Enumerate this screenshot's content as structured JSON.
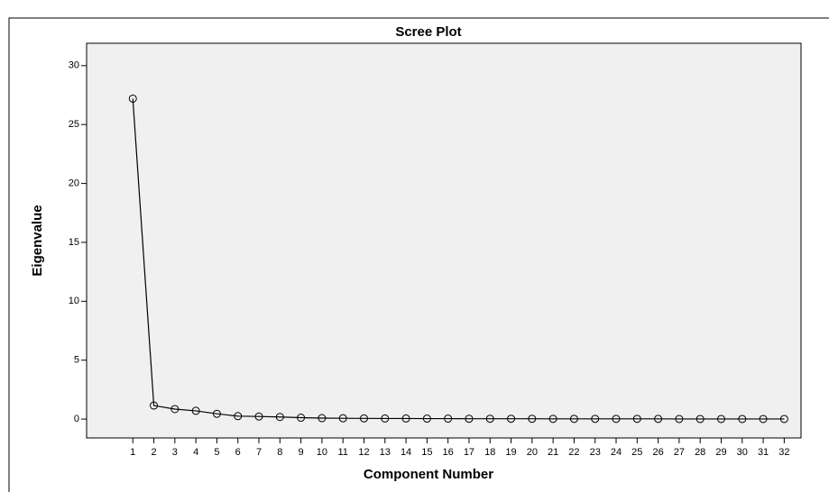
{
  "chart_data": {
    "type": "line",
    "title": "Scree Plot",
    "x_label": "Component Number",
    "y_label": "Eigenvalue",
    "x": [
      1,
      2,
      3,
      4,
      5,
      6,
      7,
      8,
      9,
      10,
      11,
      12,
      13,
      14,
      15,
      16,
      17,
      18,
      19,
      20,
      21,
      22,
      23,
      24,
      25,
      26,
      27,
      28,
      29,
      30,
      31,
      32
    ],
    "series": [
      {
        "name": "Eigenvalue",
        "color": "#000000",
        "values": [
          27.2,
          1.15,
          0.85,
          0.7,
          0.45,
          0.25,
          0.22,
          0.18,
          0.12,
          0.08,
          0.07,
          0.06,
          0.05,
          0.05,
          0.04,
          0.04,
          0.03,
          0.03,
          0.03,
          0.03,
          0.02,
          0.02,
          0.02,
          0.02,
          0.02,
          0.02,
          0.01,
          0.01,
          0.01,
          0.01,
          0.01,
          0.01
        ]
      }
    ],
    "xlim": [
      -1.2,
      32.8
    ],
    "xticks": [
      1,
      2,
      3,
      4,
      5,
      6,
      7,
      8,
      9,
      10,
      11,
      12,
      13,
      14,
      15,
      16,
      17,
      18,
      19,
      20,
      21,
      22,
      23,
      24,
      25,
      26,
      27,
      28,
      29,
      30,
      31,
      32
    ],
    "ylim": [
      -1.6,
      31.9
    ],
    "yticks": [
      0,
      5,
      10,
      15,
      20,
      25,
      30
    ],
    "grid": false,
    "marker": "open-circle"
  }
}
